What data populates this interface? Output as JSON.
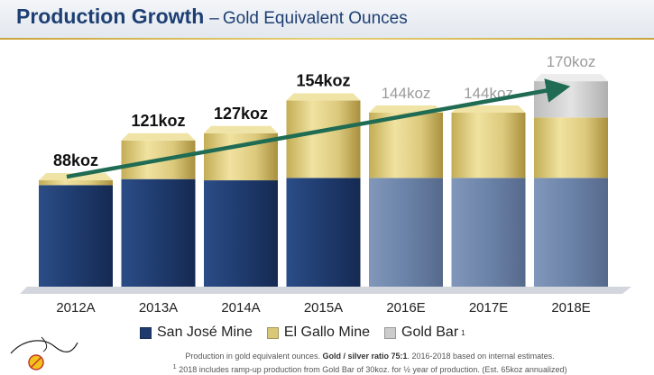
{
  "header": {
    "title": "Production Growth",
    "dash": "–",
    "subtitle": "Gold Equivalent Ounces"
  },
  "colors": {
    "san_jose": "#1f3b6e",
    "san_jose_estimate": "#6b83a8",
    "el_gallo": "#d9c878",
    "gold_bar": "#cccccc",
    "arrow": "#1f6b53",
    "title": "#1d3f73"
  },
  "chart_data": {
    "type": "bar",
    "stacked": true,
    "categories": [
      "2012A",
      "2013A",
      "2014A",
      "2015A",
      "2016E",
      "2017E",
      "2018E"
    ],
    "estimate_categories": [
      "2016E",
      "2017E",
      "2018E"
    ],
    "series": [
      {
        "name": "San José Mine",
        "values": [
          84,
          89,
          88,
          90,
          90,
          90,
          90
        ]
      },
      {
        "name": "El Gallo Mine",
        "values": [
          4,
          32,
          39,
          64,
          54,
          54,
          50
        ]
      },
      {
        "name": "Gold Bar",
        "values": [
          0,
          0,
          0,
          0,
          0,
          0,
          30
        ]
      }
    ],
    "totals": [
      88,
      121,
      127,
      154,
      144,
      144,
      170
    ],
    "data_labels": [
      "88koz",
      "121koz",
      "127koz",
      "154koz",
      "144koz",
      "144koz",
      "170koz"
    ],
    "ylim": [
      0,
      185
    ],
    "grid": false,
    "legend_position": "bottom",
    "annotations": [
      "trend arrow from 2012A to 2018E"
    ]
  },
  "legend": {
    "items": [
      {
        "label": "San José Mine",
        "sup": ""
      },
      {
        "label": "El Gallo Mine",
        "sup": ""
      },
      {
        "label": "Gold Bar",
        "sup": "1"
      }
    ]
  },
  "footnotes": {
    "line1_pre": "Production in gold equivalent ounces. ",
    "line1_bold": "Gold / silver ratio 75:1",
    "line1_post": ". 2016-2018 based on internal estimates.",
    "line2_sup": "1",
    "line2": " 2018 includes ramp-up production from Gold Bar of 30koz. for ½ year of production. (Est. 65koz annualized)"
  }
}
